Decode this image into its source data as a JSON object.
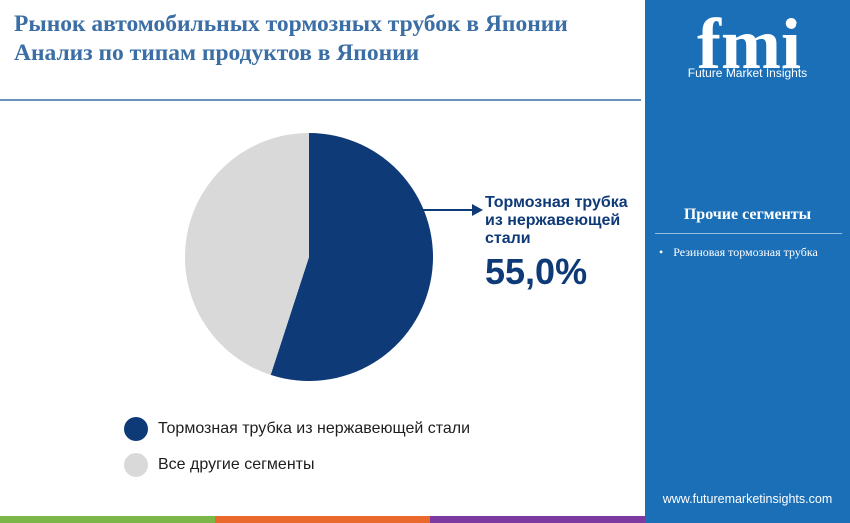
{
  "title": {
    "line1": "Рынок автомобильных тормозных трубок в Японии",
    "line2": "Анализ по типам продуктов в Японии"
  },
  "chart_data": {
    "type": "pie",
    "slices": [
      {
        "label": "Тормозная трубка из нержавеющей стали",
        "value": 55.0,
        "color": "#0f3a78"
      },
      {
        "label": "Все другие сегменты",
        "value": 45.0,
        "color": "#d9d9d9"
      }
    ],
    "callout": {
      "label": "Тормозная трубка из нержавеющей стали",
      "value_text": "55,0%"
    },
    "legend": [
      {
        "label": "Тормозная трубка из нержавеющей стали",
        "color": "#0f3a78"
      },
      {
        "label": "Все другие сегменты",
        "color": "#d9d9d9"
      }
    ]
  },
  "sidebar": {
    "logo_mark": "fmi",
    "logo_text": "Future Market Insights",
    "segments_title": "Прочие сегменты",
    "segments": [
      "Резиновая тормозная трубка"
    ],
    "website": "www.futuremarketinsights.com",
    "background": "#1b6fb6"
  },
  "bottom_bar_colors": [
    "#7ab648",
    "#e8692b",
    "#7c3aa0"
  ]
}
